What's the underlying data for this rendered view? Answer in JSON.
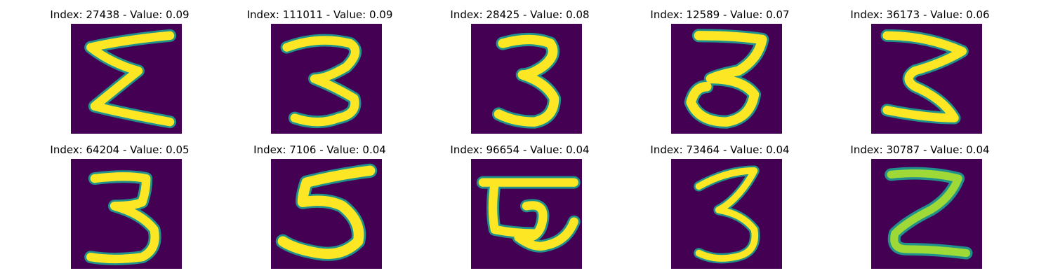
{
  "colors": {
    "background": "#440154",
    "stroke_outer": "#21918c",
    "stroke_mid": "#5ec962",
    "stroke_core": "#fde725"
  },
  "panels": [
    {
      "title": "Index: 27438 - Value: 0.09",
      "digit_icon": "handwritten-3-icon"
    },
    {
      "title": "Index: 111011 - Value: 0.09",
      "digit_icon": "handwritten-3-icon"
    },
    {
      "title": "Index: 28425 - Value: 0.08",
      "digit_icon": "handwritten-3-icon"
    },
    {
      "title": "Index: 12589 - Value: 0.07",
      "digit_icon": "handwritten-3-icon"
    },
    {
      "title": "Index: 36173 - Value: 0.06",
      "digit_icon": "handwritten-3-icon"
    },
    {
      "title": "Index: 64204 - Value: 0.05",
      "digit_icon": "handwritten-3-icon"
    },
    {
      "title": "Index: 7106 - Value: 0.04",
      "digit_icon": "handwritten-5-icon"
    },
    {
      "title": "Index: 96654 - Value: 0.04",
      "digit_icon": "handwritten-glyph-icon"
    },
    {
      "title": "Index: 73464 - Value: 0.04",
      "digit_icon": "handwritten-3-icon"
    },
    {
      "title": "Index: 30787 - Value: 0.04",
      "digit_icon": "handwritten-2-icon"
    }
  ]
}
